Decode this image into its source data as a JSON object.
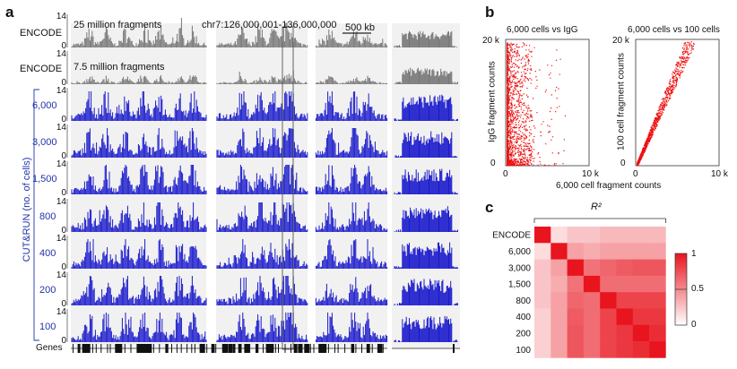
{
  "panel_a": {
    "letter": "a",
    "region": "chr7:126,000,001-136,000,000",
    "scale_bar": "500 kb",
    "ylabel": "CUT&RUN (no. of cells)",
    "genes_label": "Genes",
    "tracks": [
      {
        "label": "ENCODE",
        "note": "25 million fragments",
        "ymax": "14",
        "ymin": "0",
        "color": "#777777"
      },
      {
        "label": "ENCODE",
        "note": "7.5 million fragments",
        "ymax": "14",
        "ymin": "0",
        "color": "#777777"
      },
      {
        "label": "6,000",
        "ymax": "14",
        "ymin": "0",
        "color": "#1a1acc"
      },
      {
        "label": "3,000",
        "ymax": "14",
        "ymin": "0",
        "color": "#1a1acc"
      },
      {
        "label": "1,500",
        "ymax": "14",
        "ymin": "0",
        "color": "#1a1acc"
      },
      {
        "label": "800",
        "ymax": "14",
        "ymin": "0",
        "color": "#1a1acc"
      },
      {
        "label": "400",
        "ymax": "14",
        "ymin": "0",
        "color": "#1a1acc"
      },
      {
        "label": "200",
        "ymax": "14",
        "ymin": "0",
        "color": "#1a1acc"
      },
      {
        "label": "100",
        "ymax": "14",
        "ymin": "0",
        "color": "#1a1acc"
      }
    ]
  },
  "panel_b": {
    "letter": "b",
    "xlabel": "6,000 cell fragment counts",
    "plots": [
      {
        "title": "6,000 cells vs IgG",
        "ylabel": "IgG fragment counts",
        "ytick_top": "20 k",
        "ytick_zero": "0",
        "xtick_zero": "0",
        "xtick_right": "10 k",
        "color": "#ee1111"
      },
      {
        "title": "6,000 cells vs 100 cells",
        "ylabel": "100 cell fragment counts",
        "ytick_top": "20 k",
        "ytick_zero": "0",
        "xtick_zero": "0",
        "xtick_right": "10 k",
        "color": "#ee1111"
      }
    ]
  },
  "panel_c": {
    "letter": "c",
    "title": "R²",
    "colorbar_ticks": [
      "1",
      "0.5",
      "0"
    ],
    "colors": {
      "low": "#ffffff",
      "high": "#e8141e"
    }
  },
  "chart_data": [
    {
      "type": "area",
      "title": "chr7:126,000,001-136,000,000",
      "ylabel": "CUT&RUN (no. of cells)",
      "ylim": [
        0,
        14
      ],
      "series": [
        {
          "name": "ENCODE"
        },
        {
          "name": "ENCODE"
        },
        {
          "name": "6,000"
        },
        {
          "name": "3,000"
        },
        {
          "name": "1,500"
        },
        {
          "name": "800"
        },
        {
          "name": "400"
        },
        {
          "name": "200"
        },
        {
          "name": "100"
        }
      ]
    },
    {
      "type": "scatter",
      "title": "6,000 cells vs IgG",
      "xlabel": "6,000 cell fragment counts",
      "ylabel": "IgG fragment counts",
      "xlim": [
        0,
        10000
      ],
      "ylim": [
        0,
        20000
      ]
    },
    {
      "type": "scatter",
      "title": "6,000 cells vs 100 cells",
      "xlabel": "6,000 cell fragment counts",
      "ylabel": "100 cell fragment counts",
      "xlim": [
        0,
        10000
      ],
      "ylim": [
        0,
        20000
      ]
    },
    {
      "type": "heatmap",
      "title": "R²",
      "categories": [
        "ENCODE",
        "6,000",
        "3,000",
        "1,500",
        "800",
        "400",
        "200",
        "100"
      ],
      "zlim": [
        0,
        1
      ],
      "values": [
        [
          1.0,
          0.15,
          0.25,
          0.25,
          0.3,
          0.3,
          0.3,
          0.3
        ],
        [
          0.15,
          1.0,
          0.4,
          0.35,
          0.4,
          0.4,
          0.4,
          0.4
        ],
        [
          0.25,
          0.4,
          1.0,
          0.6,
          0.65,
          0.7,
          0.72,
          0.72
        ],
        [
          0.25,
          0.35,
          0.6,
          1.0,
          0.62,
          0.62,
          0.62,
          0.62
        ],
        [
          0.25,
          0.4,
          0.65,
          0.62,
          1.0,
          0.8,
          0.8,
          0.8
        ],
        [
          0.2,
          0.4,
          0.7,
          0.62,
          0.8,
          1.0,
          0.85,
          0.85
        ],
        [
          0.2,
          0.4,
          0.72,
          0.62,
          0.8,
          0.85,
          1.0,
          0.9
        ],
        [
          0.2,
          0.4,
          0.72,
          0.62,
          0.8,
          0.85,
          0.9,
          1.0
        ]
      ]
    }
  ]
}
